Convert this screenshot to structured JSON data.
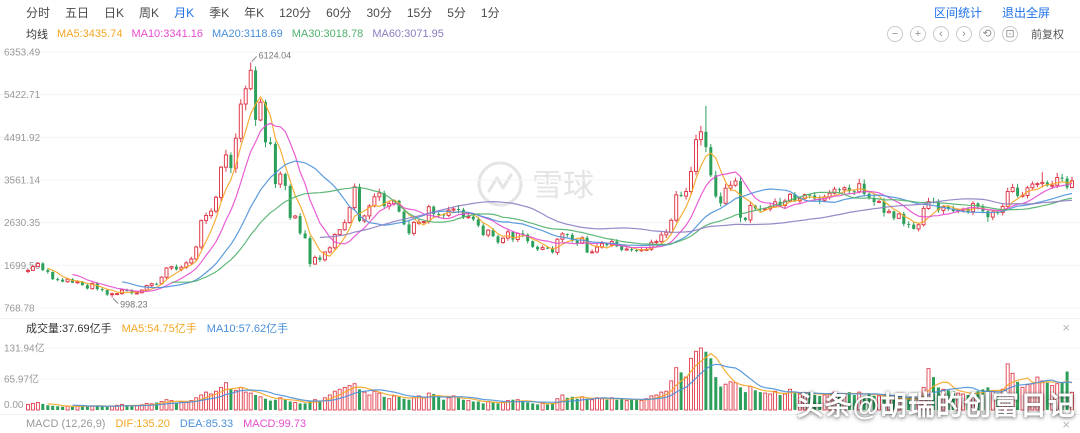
{
  "toolbar": {
    "periods": [
      {
        "label": "分时"
      },
      {
        "label": "五日"
      },
      {
        "label": "日K"
      },
      {
        "label": "周K"
      },
      {
        "label": "月K",
        "active": true
      },
      {
        "label": "季K"
      },
      {
        "label": "年K"
      },
      {
        "label": "120分"
      },
      {
        "label": "60分"
      },
      {
        "label": "30分"
      },
      {
        "label": "15分"
      },
      {
        "label": "5分"
      },
      {
        "label": "1分"
      }
    ],
    "right": {
      "range_stats": "区间统计",
      "exit_fullscreen": "退出全屏"
    }
  },
  "ma_legend": {
    "title": "均线",
    "items": [
      {
        "label": "MA5:3435.74",
        "color": "#f5a623"
      },
      {
        "label": "MA10:3341.16",
        "color": "#e64ccf"
      },
      {
        "label": "MA20:3118.69",
        "color": "#4a90d9"
      },
      {
        "label": "MA30:3018.78",
        "color": "#50b06c"
      },
      {
        "label": "MA60:3071.95",
        "color": "#8e7cc3"
      }
    ]
  },
  "controls": {
    "icons": [
      {
        "name": "zoom-out",
        "glyph": "−"
      },
      {
        "name": "zoom-in",
        "glyph": "+"
      },
      {
        "name": "pan-left",
        "glyph": "‹"
      },
      {
        "name": "pan-right",
        "glyph": "›"
      },
      {
        "name": "reset",
        "glyph": "⟲"
      },
      {
        "name": "screenshot",
        "glyph": "⊡"
      }
    ],
    "adjust_label": "前复权"
  },
  "volume_legend": {
    "close_glyph": "×",
    "items": [
      {
        "label": "成交量:37.69亿手",
        "color": "#333333"
      },
      {
        "label": "MA5:54.75亿手",
        "color": "#f5a623"
      },
      {
        "label": "MA10:57.62亿手",
        "color": "#4a90d9"
      }
    ]
  },
  "macd_row": {
    "close_glyph": "×",
    "items": [
      {
        "label": "MACD (12,26,9)",
        "color": "#999999"
      },
      {
        "label": "DIF:135.20",
        "color": "#f5a623"
      },
      {
        "label": "DEA:85.33",
        "color": "#4a90d9"
      },
      {
        "label": "MACD:99.73",
        "color": "#e64ccf"
      }
    ]
  },
  "watermarks": {
    "brand": "雪球",
    "overlay": "头条@胡瑞的创富日记"
  },
  "chart_data": {
    "type": "candlestick",
    "period": "月K",
    "title": "",
    "y_axis_labels": [
      "6353.49",
      "5422.71",
      "4491.92",
      "3561.14",
      "2630.35",
      "1699.56",
      "768.78"
    ],
    "volume_axis_labels": [
      "131.94亿",
      "65.97亿",
      "0.00"
    ],
    "annotations": {
      "high": "6124.04",
      "low": "998.23"
    },
    "up_color": "#e03e4d",
    "down_color": "#2ca05a",
    "ma_lines": [
      {
        "period": 5,
        "color": "#f5a623"
      },
      {
        "period": 10,
        "color": "#e64ccf"
      },
      {
        "period": 20,
        "color": "#4a90d9"
      },
      {
        "period": 30,
        "color": "#50b06c"
      },
      {
        "period": 60,
        "color": "#8e7cc3"
      }
    ],
    "vol_ma_lines": [
      {
        "period": 5,
        "color": "#f5a623"
      },
      {
        "period": 10,
        "color": "#4a90d9"
      }
    ],
    "closes": [
      1590,
      1675,
      1741,
      1595,
      1555,
      1399,
      1386,
      1342,
      1396,
      1320,
      1340,
      1266,
      1191,
      1306,
      1181,
      1159,
      1060,
      1080,
      1083,
      1162,
      1155,
      1092,
      1099,
      1161,
      1258,
      1299,
      1298,
      1440,
      1641,
      1672,
      1612,
      1658,
      1752,
      1837,
      2099,
      2675,
      2786,
      2881,
      3183,
      3841,
      4109,
      3820,
      4471,
      5218,
      5552,
      5954,
      4871,
      5261,
      4383,
      4348,
      3472,
      3693,
      3433,
      2736,
      2775,
      2397,
      2293,
      1728,
      1871,
      1820,
      1990,
      2082,
      2373,
      2477,
      2632,
      2959,
      3412,
      2667,
      2779,
      2995,
      3195,
      3277,
      2989,
      3051,
      3109,
      2870,
      2592,
      2398,
      2637,
      2638,
      2655,
      2978,
      2820,
      2808,
      2790,
      2905,
      2928,
      2911,
      2743,
      2762,
      2701,
      2567,
      2359,
      2468,
      2333,
      2199,
      2292,
      2428,
      2262,
      2396,
      2372,
      2225,
      2103,
      2047,
      2086,
      2068,
      1980,
      2269,
      2385,
      2365,
      2236,
      2177,
      2300,
      1979,
      1993,
      2098,
      2174,
      2141,
      2220,
      2116,
      2033,
      2056,
      2033,
      2026,
      2039,
      2048,
      2201,
      2217,
      2363,
      2420,
      2683,
      3235,
      3210,
      3310,
      3747,
      4441,
      4612,
      4277,
      3664,
      3206,
      3053,
      3383,
      3445,
      3539,
      2738,
      2688,
      3004,
      2938,
      2917,
      2930,
      2979,
      3085,
      3005,
      3100,
      3250,
      3104,
      3159,
      3242,
      3223,
      3155,
      3117,
      3192,
      3273,
      3361,
      3349,
      3393,
      3317,
      3307,
      3481,
      3259,
      3169,
      3082,
      3095,
      2847,
      2876,
      2725,
      2821,
      2603,
      2588,
      2494,
      2585,
      2941,
      3091,
      3078,
      2899,
      2979,
      2933,
      2886,
      2905,
      2929,
      2872,
      3050,
      2977,
      2880,
      2750,
      2860,
      2852,
      2985,
      3310,
      3396,
      3218,
      3225,
      3392,
      3473,
      3483,
      3509,
      3442,
      3447,
      3615,
      3591,
      3397,
      3543
    ],
    "volumes": [
      12,
      14,
      16,
      13,
      10,
      9,
      8,
      7,
      8,
      7,
      8,
      9,
      8,
      9,
      10,
      8,
      7,
      8,
      10,
      12,
      10,
      8,
      9,
      11,
      14,
      13,
      16,
      18,
      22,
      20,
      16,
      18,
      16,
      20,
      26,
      32,
      38,
      34,
      40,
      48,
      58,
      44,
      42,
      48,
      38,
      36,
      32,
      28,
      24,
      20,
      22,
      26,
      22,
      18,
      16,
      14,
      14,
      18,
      22,
      20,
      26,
      32,
      40,
      44,
      48,
      52,
      56,
      44,
      38,
      32,
      40,
      36,
      28,
      24,
      30,
      28,
      24,
      22,
      26,
      30,
      26,
      36,
      34,
      28,
      22,
      26,
      30,
      26,
      22,
      20,
      18,
      18,
      14,
      18,
      16,
      14,
      16,
      20,
      22,
      22,
      18,
      16,
      14,
      12,
      14,
      12,
      14,
      24,
      32,
      26,
      28,
      24,
      28,
      24,
      22,
      26,
      24,
      22,
      26,
      22,
      24,
      20,
      22,
      22,
      20,
      24,
      30,
      32,
      38,
      40,
      62,
      90,
      80,
      70,
      110,
      125,
      131.94,
      124,
      110,
      70,
      50,
      55,
      60,
      58,
      48,
      38,
      50,
      42,
      38,
      36,
      34,
      40,
      32,
      34,
      44,
      36,
      34,
      36,
      38,
      32,
      30,
      32,
      34,
      38,
      34,
      34,
      38,
      32,
      38,
      30,
      34,
      30,
      30,
      26,
      24,
      22,
      22,
      24,
      26,
      22,
      24,
      48,
      88,
      70,
      48,
      44,
      42,
      40,
      36,
      34,
      32,
      36,
      40,
      44,
      48,
      40,
      36,
      44,
      98,
      78,
      60,
      48,
      54,
      56,
      70,
      62,
      58,
      52,
      56,
      60,
      82,
      37.69
    ],
    "extremes": {
      "17": {
        "low": 998.23
      },
      "45": {
        "high": 6124.04
      },
      "57": {
        "low": 1664.93
      },
      "67": {
        "high": 3478.01
      },
      "137": {
        "high": 5178.19
      },
      "144": {
        "low": 2638.3
      },
      "168": {
        "high": 3587.03
      },
      "180": {
        "low": 2440.91
      },
      "194": {
        "low": 2646.8
      },
      "205": {
        "high": 3731.69
      }
    }
  }
}
